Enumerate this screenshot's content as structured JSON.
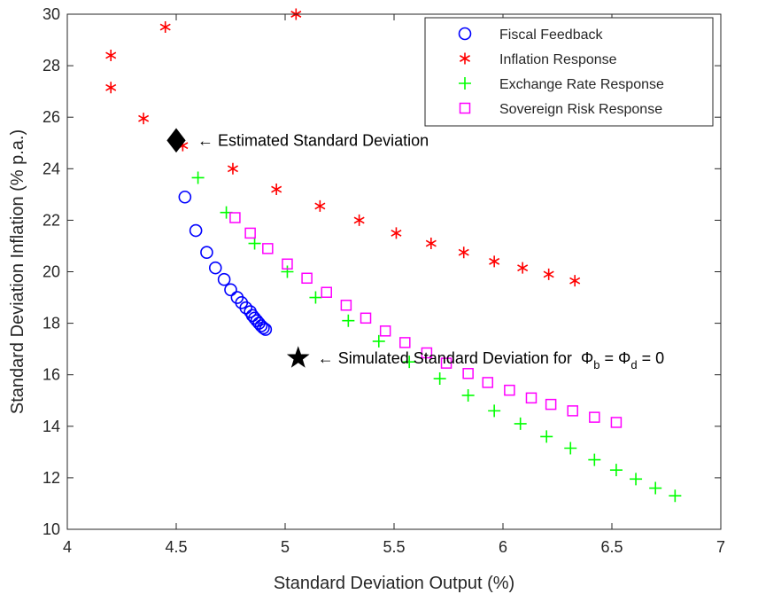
{
  "chart_data": {
    "type": "scatter",
    "xlabel": "Standard Deviation Output (%)",
    "ylabel": "Standard Deviation Inflation (% p.a.)",
    "xlim": [
      4,
      7
    ],
    "ylim": [
      10,
      30
    ],
    "xticks": [
      4,
      4.5,
      5,
      5.5,
      6,
      6.5,
      7
    ],
    "xtick_labels": [
      "4",
      "4.5",
      "5",
      "5.5",
      "6",
      "6.5",
      "7"
    ],
    "yticks": [
      10,
      12,
      14,
      16,
      18,
      20,
      22,
      24,
      26,
      28,
      30
    ],
    "ytick_labels": [
      "10",
      "12",
      "14",
      "16",
      "18",
      "20",
      "22",
      "24",
      "26",
      "28",
      "30"
    ],
    "grid": false,
    "legend_position": "top-right",
    "series": [
      {
        "name": "Fiscal Feedback",
        "marker": "circle",
        "color": "#0000ff",
        "points": [
          [
            4.54,
            22.9
          ],
          [
            4.59,
            21.6
          ],
          [
            4.64,
            20.75
          ],
          [
            4.68,
            20.15
          ],
          [
            4.72,
            19.7
          ],
          [
            4.75,
            19.3
          ],
          [
            4.78,
            19.0
          ],
          [
            4.8,
            18.8
          ],
          [
            4.82,
            18.6
          ],
          [
            4.84,
            18.45
          ],
          [
            4.85,
            18.3
          ],
          [
            4.86,
            18.2
          ],
          [
            4.87,
            18.1
          ],
          [
            4.88,
            18.0
          ],
          [
            4.89,
            17.9
          ],
          [
            4.9,
            17.82
          ],
          [
            4.91,
            17.76
          ]
        ]
      },
      {
        "name": "Inflation Response",
        "marker": "asterisk",
        "color": "#ff0000",
        "points": [
          [
            4.2,
            28.4
          ],
          [
            4.2,
            27.15
          ],
          [
            4.35,
            25.95
          ],
          [
            4.45,
            29.5
          ],
          [
            4.53,
            24.9
          ],
          [
            4.76,
            24.0
          ],
          [
            4.96,
            23.2
          ],
          [
            5.05,
            30.0
          ],
          [
            5.16,
            22.55
          ],
          [
            5.34,
            22.0
          ],
          [
            5.51,
            21.5
          ],
          [
            5.67,
            21.1
          ],
          [
            5.82,
            20.75
          ],
          [
            5.96,
            20.4
          ],
          [
            6.09,
            20.15
          ],
          [
            6.21,
            19.9
          ],
          [
            6.33,
            19.65
          ]
        ]
      },
      {
        "name": "Exchange Rate Response",
        "marker": "plus",
        "color": "#00ff00",
        "points": [
          [
            4.6,
            23.65
          ],
          [
            4.73,
            22.3
          ],
          [
            4.86,
            21.1
          ],
          [
            5.01,
            20.0
          ],
          [
            5.14,
            19.0
          ],
          [
            5.29,
            18.1
          ],
          [
            5.43,
            17.3
          ],
          [
            5.57,
            16.5
          ],
          [
            5.71,
            15.85
          ],
          [
            5.84,
            15.2
          ],
          [
            5.96,
            14.6
          ],
          [
            6.08,
            14.1
          ],
          [
            6.2,
            13.6
          ],
          [
            6.31,
            13.15
          ],
          [
            6.42,
            12.7
          ],
          [
            6.52,
            12.3
          ],
          [
            6.61,
            11.95
          ],
          [
            6.7,
            11.6
          ],
          [
            6.79,
            11.3
          ]
        ]
      },
      {
        "name": "Sovereign Risk Response",
        "marker": "square",
        "color": "#ff00ff",
        "points": [
          [
            4.77,
            22.1
          ],
          [
            4.84,
            21.5
          ],
          [
            4.92,
            20.9
          ],
          [
            5.01,
            20.3
          ],
          [
            5.1,
            19.75
          ],
          [
            5.19,
            19.2
          ],
          [
            5.28,
            18.7
          ],
          [
            5.37,
            18.2
          ],
          [
            5.46,
            17.7
          ],
          [
            5.55,
            17.25
          ],
          [
            5.65,
            16.85
          ],
          [
            5.74,
            16.45
          ],
          [
            5.84,
            16.05
          ],
          [
            5.93,
            15.7
          ],
          [
            6.03,
            15.4
          ],
          [
            6.13,
            15.1
          ],
          [
            6.22,
            14.85
          ],
          [
            6.32,
            14.6
          ],
          [
            6.42,
            14.35
          ],
          [
            6.52,
            14.15
          ]
        ]
      }
    ],
    "annotations": [
      {
        "name": "estimated",
        "marker": "diamond",
        "color": "#000000",
        "point": [
          4.5,
          25.1
        ],
        "text": "←  Estimated Standard Deviation"
      },
      {
        "name": "simulated",
        "marker": "star",
        "color": "#000000",
        "point": [
          5.06,
          16.65
        ],
        "text": "←  Simulated Standard Deviation for",
        "formula": {
          "phi1": "Φ",
          "sub1": "b",
          "eq1": " = ",
          "phi2": "Φ",
          "sub2": "d",
          "eq2": " = 0"
        }
      }
    ]
  }
}
